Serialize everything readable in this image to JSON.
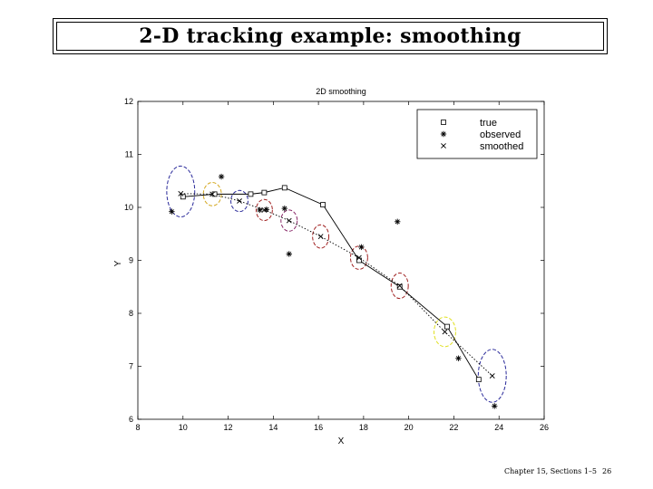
{
  "slide": {
    "title": "2-D tracking example: smoothing",
    "footer_section": "Chapter 15, Sections 1–5",
    "footer_page": "26"
  },
  "chart_data": {
    "type": "scatter",
    "title": "2D smoothing",
    "xlabel": "X",
    "ylabel": "Y",
    "xlim": [
      8,
      26
    ],
    "ylim": [
      6,
      12
    ],
    "xticks": [
      8,
      10,
      12,
      14,
      16,
      18,
      20,
      22,
      24,
      26
    ],
    "yticks": [
      6,
      7,
      8,
      9,
      10,
      11,
      12
    ],
    "grid": false,
    "legend_position": "top-right",
    "series": [
      {
        "name": "true",
        "marker": "square",
        "line": "solid",
        "x": [
          10.0,
          11.4,
          13.0,
          13.6,
          14.5,
          16.2,
          17.8,
          19.6,
          21.7,
          23.1
        ],
        "y": [
          10.2,
          10.25,
          10.25,
          10.28,
          10.37,
          10.05,
          9.0,
          8.5,
          7.75,
          6.75
        ]
      },
      {
        "name": "observed",
        "marker": "asterisk",
        "line": "none",
        "x": [
          9.5,
          11.7,
          13.4,
          13.7,
          14.5,
          14.7,
          17.9,
          19.5,
          22.2,
          23.8
        ],
        "y": [
          9.92,
          10.58,
          9.95,
          9.96,
          9.98,
          9.12,
          9.25,
          9.73,
          7.15,
          6.25
        ]
      },
      {
        "name": "smoothed",
        "marker": "x",
        "line": "dotted",
        "x": [
          9.9,
          11.3,
          12.5,
          13.6,
          14.7,
          16.1,
          17.8,
          19.6,
          21.6,
          23.7
        ],
        "y": [
          10.26,
          10.25,
          10.12,
          9.95,
          9.75,
          9.45,
          9.05,
          8.52,
          7.65,
          6.82
        ]
      }
    ],
    "error_ellipses": [
      {
        "cx": 9.9,
        "cy": 10.3,
        "rx": 0.62,
        "ry": 0.48,
        "color": "#2a2a9a"
      },
      {
        "cx": 11.3,
        "cy": 10.25,
        "rx": 0.4,
        "ry": 0.22,
        "color": "#d4a820"
      },
      {
        "cx": 12.5,
        "cy": 10.12,
        "rx": 0.38,
        "ry": 0.2,
        "color": "#2a2a9a"
      },
      {
        "cx": 13.6,
        "cy": 9.95,
        "rx": 0.36,
        "ry": 0.2,
        "color": "#a02020"
      },
      {
        "cx": 14.7,
        "cy": 9.75,
        "rx": 0.36,
        "ry": 0.2,
        "color": "#8a2a6a"
      },
      {
        "cx": 16.1,
        "cy": 9.45,
        "rx": 0.36,
        "ry": 0.22,
        "color": "#a02020"
      },
      {
        "cx": 17.8,
        "cy": 9.05,
        "rx": 0.38,
        "ry": 0.22,
        "color": "#a02020"
      },
      {
        "cx": 19.6,
        "cy": 8.52,
        "rx": 0.38,
        "ry": 0.24,
        "color": "#a02020"
      },
      {
        "cx": 21.6,
        "cy": 7.65,
        "rx": 0.48,
        "ry": 0.28,
        "color": "#e0e020"
      },
      {
        "cx": 23.7,
        "cy": 6.82,
        "rx": 0.62,
        "ry": 0.5,
        "color": "#2a2a9a"
      }
    ]
  }
}
